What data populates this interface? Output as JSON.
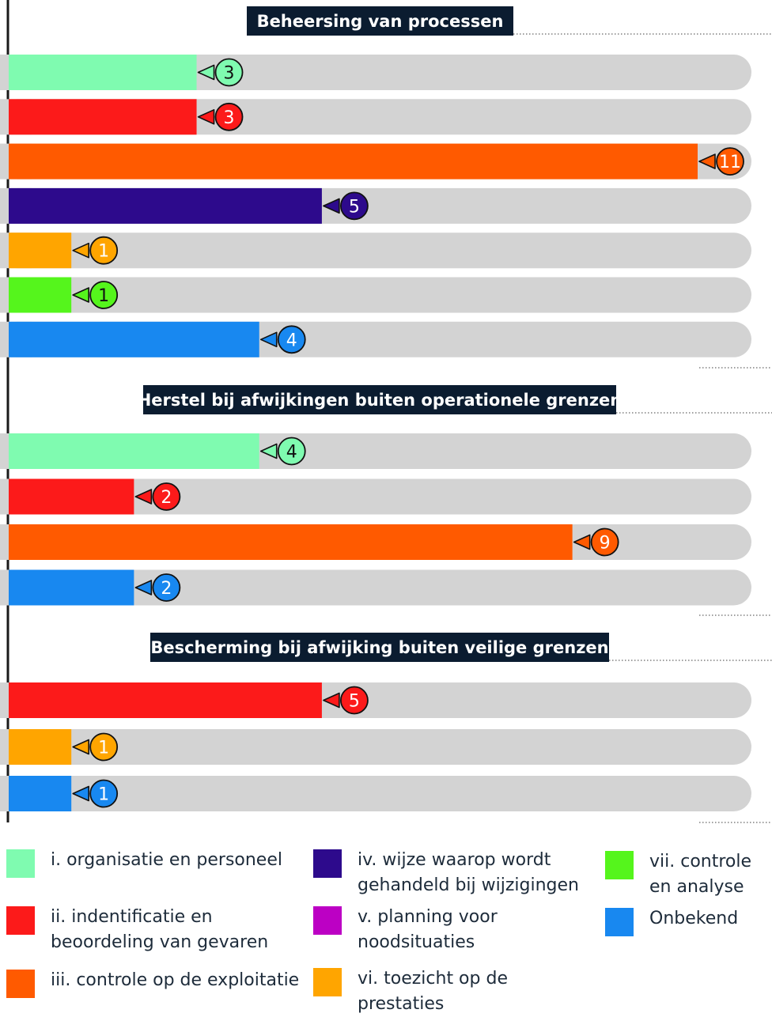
{
  "chart_data": {
    "type": "bar",
    "orientation": "horizontal",
    "max_value": 12,
    "grid": false,
    "legend_placement": "bottom",
    "panels": [
      {
        "title": "Beheersing van processen",
        "bars": [
          {
            "category": "i. organisatie en personeel",
            "value": 3,
            "label": "3"
          },
          {
            "category": "ii. indentificatie en beoordeling van gevaren",
            "value": 3,
            "label": "3"
          },
          {
            "category": "iii. controle op de exploitatie",
            "value": 11,
            "label": "11"
          },
          {
            "category": "iv. wijze waarop wordt gehandeld bij wijzigingen",
            "value": 5,
            "label": "5"
          },
          {
            "category": "vi. toezicht op de prestaties",
            "value": 1,
            "label": "1"
          },
          {
            "category": "vii. controle en analyse",
            "value": 1,
            "label": "1"
          },
          {
            "category": "Onbekend",
            "value": 4,
            "label": "4"
          }
        ]
      },
      {
        "title": "Herstel bij afwijkingen buiten operationele grenzen",
        "bars": [
          {
            "category": "i. organisatie en personeel",
            "value": 4,
            "label": "4"
          },
          {
            "category": "ii. indentificatie en beoordeling van gevaren",
            "value": 2,
            "label": "2"
          },
          {
            "category": "iii. controle op de exploitatie",
            "value": 9,
            "label": "9"
          },
          {
            "category": "Onbekend",
            "value": 2,
            "label": "2"
          }
        ]
      },
      {
        "title": "Bescherming bij afwijking buiten veilige grenzen",
        "bars": [
          {
            "category": "ii. indentificatie en beoordeling van gevaren",
            "value": 5,
            "label": "5"
          },
          {
            "category": "vi. toezicht op de prestaties",
            "value": 1,
            "label": "1"
          },
          {
            "category": "Onbekend",
            "value": 1,
            "label": "1"
          }
        ]
      }
    ],
    "colors": {
      "i. organisatie en personeel": "#7ffbb0",
      "ii. indentificatie en beoordeling van gevaren": "#fc1a1a",
      "iii. controle op de exploitatie": "#ff5a00",
      "iv. wijze waarop wordt gehandeld bij wijzigingen": "#2d0a8c",
      "v. planning voor noodsituaties": "#bc00c4",
      "vi. toezicht op de prestaties": "#ffa500",
      "vii. controle en analyse": "#55f51c",
      "Onbekend": "#1888f0"
    },
    "track_color": "#d3d3d3",
    "title_background": "#0b1c30",
    "legend": [
      {
        "category": "i. organisatie en personeel",
        "text": "i. organisatie en personeel"
      },
      {
        "category": "ii. indentificatie en beoordeling van gevaren",
        "text": "ii. indentificatie en\nbeoordeling van gevaren"
      },
      {
        "category": "iii. controle op de exploitatie",
        "text": "iii. controle op de exploitatie"
      },
      {
        "category": "iv. wijze waarop wordt gehandeld bij wijzigingen",
        "text": "iv. wijze waarop wordt\ngehandeld bij wijzigingen"
      },
      {
        "category": "v. planning voor noodsituaties",
        "text": "v. planning voor\nnoodsituaties"
      },
      {
        "category": "vi. toezicht op de prestaties",
        "text": "vi. toezicht op de\nprestaties"
      },
      {
        "category": "vii. controle en analyse",
        "text": "vii. controle\nen analyse"
      },
      {
        "category": "Onbekend",
        "text": "Onbekend"
      }
    ]
  }
}
